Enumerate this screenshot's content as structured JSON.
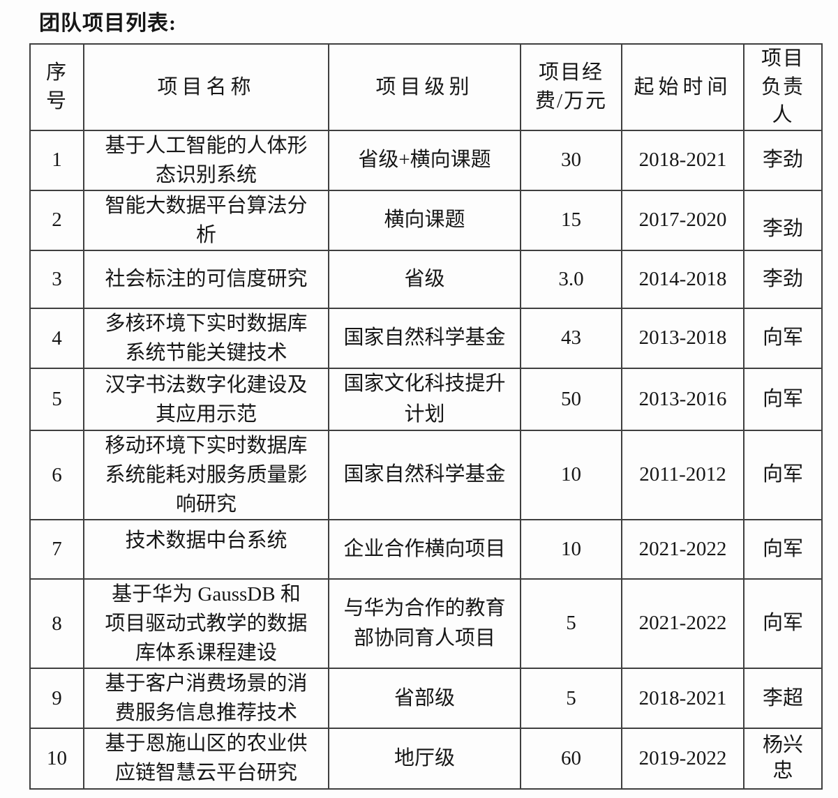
{
  "title": "团队项目列表:",
  "table": {
    "headers": [
      "序\n号",
      "项目名称",
      "项目级别",
      "项目经\n费/万元",
      "起始时间",
      "项目\n负责\n人"
    ],
    "column_keys": [
      "no",
      "name",
      "level",
      "funding",
      "period",
      "leader"
    ],
    "rows": [
      {
        "no": "1",
        "name": "基于人工智能的人体形态识别系统",
        "level": "省级+横向课题",
        "funding": "30",
        "period": "2018-2021",
        "leader": "李劲"
      },
      {
        "no": "2",
        "name": "智能大数据平台算法分析",
        "level": "横向课题",
        "funding": "15",
        "period": "2017-2020",
        "leader": "李劲"
      },
      {
        "no": "3",
        "name": "社会标注的可信度研究",
        "level": "省级",
        "funding": "3.0",
        "period": "2014-2018",
        "leader": "李劲"
      },
      {
        "no": "4",
        "name": "多核环境下实时数据库系统节能关键技术",
        "level": "国家自然科学基金",
        "funding": "43",
        "period": "2013-2018",
        "leader": "向军"
      },
      {
        "no": "5",
        "name": "汉字书法数字化建设及其应用示范",
        "level": "国家文化科技提升计划",
        "funding": "50",
        "period": "2013-2016",
        "leader": "向军"
      },
      {
        "no": "6",
        "name": "移动环境下实时数据库系统能耗对服务质量影响研究",
        "level": "国家自然科学基金",
        "funding": "10",
        "period": "2011-2012",
        "leader": "向军"
      },
      {
        "no": "7",
        "name": "技术数据中台系统",
        "level": "企业合作横向项目",
        "funding": "10",
        "period": "2021-2022",
        "leader": "向军"
      },
      {
        "no": "8",
        "name": "基于华为 GaussDB 和项目驱动式教学的数据库体系课程建设",
        "level": "与华为合作的教育部协同育人项目",
        "funding": "5",
        "period": "2021-2022",
        "leader": "向军"
      },
      {
        "no": "9",
        "name": "基于客户消费场景的消费服务信息推荐技术",
        "level": "省部级",
        "funding": "5",
        "period": "2018-2021",
        "leader": "李超"
      },
      {
        "no": "10",
        "name": "基于恩施山区的农业供应链智慧云平台研究",
        "level": "地厅级",
        "funding": "60",
        "period": "2019-2022",
        "leader": "杨兴忠"
      }
    ]
  }
}
